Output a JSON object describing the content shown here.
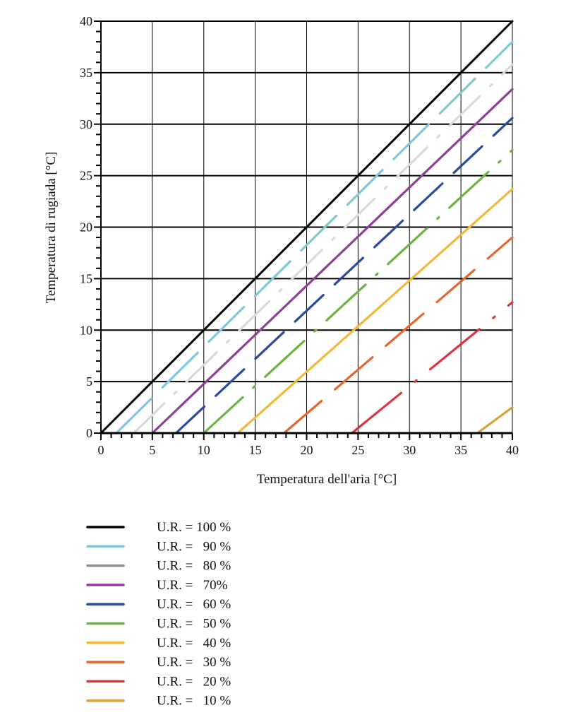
{
  "chart_data": {
    "type": "line",
    "xlabel": "Temperatura dell'aria [°C]",
    "ylabel": "Temperatura di rugiada [°C]",
    "xlim": [
      0,
      40
    ],
    "ylim": [
      0,
      40
    ],
    "xticks": [
      "0",
      "5",
      "10",
      "15",
      "20",
      "25",
      "30",
      "35",
      "40"
    ],
    "yticks": [
      "0",
      "5",
      "10",
      "15",
      "20",
      "25",
      "30",
      "35",
      "40"
    ],
    "grid": true,
    "legend_position": "bottom",
    "series": [
      {
        "name": "U.R. = 100 %",
        "color": "#000000",
        "points": [
          [
            0,
            0
          ],
          [
            40,
            40
          ]
        ]
      },
      {
        "name": "U.R. =   90 %",
        "color": "#7ec8d8",
        "points": [
          [
            1.5,
            0
          ],
          [
            40,
            38
          ]
        ]
      },
      {
        "name": "U.R. =   80 %",
        "color": "#d9d9d9",
        "legend_color": "#8c8c8c",
        "points": [
          [
            3.2,
            0
          ],
          [
            40,
            35.8
          ]
        ]
      },
      {
        "name": "U.R. =   70%",
        "color": "#8e3f97",
        "points": [
          [
            5,
            0
          ],
          [
            40,
            33.4
          ]
        ]
      },
      {
        "name": "U.R. =   60 %",
        "color": "#2b4a9b",
        "points": [
          [
            7.3,
            0
          ],
          [
            40,
            30.6
          ]
        ]
      },
      {
        "name": "U.R. =   50 %",
        "color": "#6db33f",
        "points": [
          [
            10,
            0
          ],
          [
            40,
            27.5
          ]
        ]
      },
      {
        "name": "U.R. =   40 %",
        "color": "#f0b93a",
        "points": [
          [
            13.3,
            0
          ],
          [
            40,
            23.7
          ]
        ]
      },
      {
        "name": "U.R. =   30 %",
        "color": "#e2672f",
        "points": [
          [
            17.8,
            0
          ],
          [
            40,
            19
          ]
        ]
      },
      {
        "name": "U.R. =   20 %",
        "color": "#d93440",
        "points": [
          [
            24.4,
            0
          ],
          [
            40,
            12.7
          ]
        ]
      },
      {
        "name": "U.R. =   10 %",
        "color": "#d4a23a",
        "points": [
          [
            36.6,
            0
          ],
          [
            40,
            2.5
          ]
        ]
      }
    ]
  }
}
